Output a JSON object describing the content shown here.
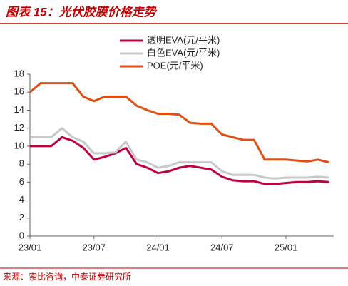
{
  "chart_data": {
    "type": "line",
    "title": "图表 15：光伏胶膜价格走势",
    "source": "来源：索比咨询，中泰证券研究所",
    "categories": [
      "23/01",
      null,
      null,
      null,
      null,
      null,
      "23/07",
      null,
      null,
      null,
      null,
      null,
      "24/01",
      null,
      null,
      null,
      null,
      null,
      "24/07",
      null,
      null,
      null,
      null,
      null,
      "25/01",
      null,
      null,
      null,
      null
    ],
    "series": [
      {
        "name": "透明EVA(元/平米)",
        "color": "#c0003c",
        "values": [
          10,
          10,
          10,
          11,
          10.6,
          9.8,
          8.5,
          8.8,
          9.2,
          9.8,
          8,
          7.6,
          7,
          7.2,
          7.6,
          7.8,
          7.6,
          7.4,
          6.6,
          6.2,
          6.1,
          6.1,
          5.8,
          5.8,
          5.9,
          6,
          6,
          6.1,
          6
        ]
      },
      {
        "name": "白色EVA(元/平米)",
        "color": "#c8c8c8",
        "values": [
          11,
          11,
          11,
          12,
          11,
          10.5,
          9.2,
          9.2,
          9.3,
          10.5,
          8.5,
          8.2,
          7.6,
          7.8,
          8.2,
          8.2,
          8.2,
          8.2,
          7.2,
          6.8,
          6.8,
          6.8,
          6.5,
          6.4,
          6.5,
          6.5,
          6.5,
          6.6,
          6.5
        ]
      },
      {
        "name": "POE(元/平米)",
        "color": "#e04e12",
        "values": [
          16,
          17,
          17,
          17,
          17,
          15.5,
          15,
          15.5,
          15.5,
          15.5,
          14.5,
          14,
          13.6,
          13.6,
          13.5,
          12.6,
          12.5,
          12.5,
          11.3,
          11,
          10.7,
          10.7,
          8.5,
          8.5,
          8.5,
          8.4,
          8.3,
          8.5,
          8.2
        ]
      }
    ],
    "ylim": [
      0,
      18
    ],
    "yticks": [
      0,
      2,
      4,
      6,
      8,
      10,
      12,
      14,
      16,
      18
    ]
  }
}
